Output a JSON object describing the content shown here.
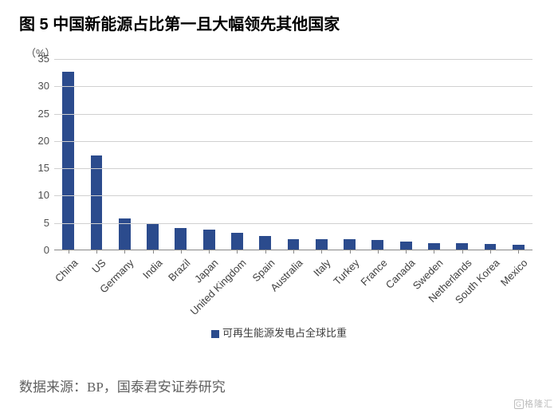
{
  "title": "图 5 中国新能源占比第一且大幅领先其他国家",
  "source": "数据来源：BP，国泰君安证券研究",
  "watermark": "格隆汇",
  "chart": {
    "type": "bar",
    "yaxis_unit": "（%）",
    "ylim": [
      0,
      35
    ],
    "ytick_step": 5,
    "bar_color": "#2b4b8d",
    "grid_color": "#d0d0d0",
    "axis_color": "#888888",
    "text_color": "#505050",
    "background_color": "#ffffff",
    "bar_width_ratio": 0.42,
    "label_fontsize": 13,
    "label_rotation": -45,
    "legend_label": "可再生能源发电占全球比重",
    "categories": [
      "China",
      "US",
      "Germany",
      "India",
      "Brazil",
      "Japan",
      "United Kingdom",
      "Spain",
      "Australia",
      "Italy",
      "Turkey",
      "France",
      "Canada",
      "Sweden",
      "Netherlands",
      "South Korea",
      "Mexico"
    ],
    "values": [
      32.5,
      17.2,
      5.7,
      4.8,
      4.0,
      3.7,
      3.1,
      2.5,
      1.9,
      1.9,
      1.9,
      1.7,
      1.4,
      1.2,
      1.1,
      1.0,
      0.9
    ]
  }
}
